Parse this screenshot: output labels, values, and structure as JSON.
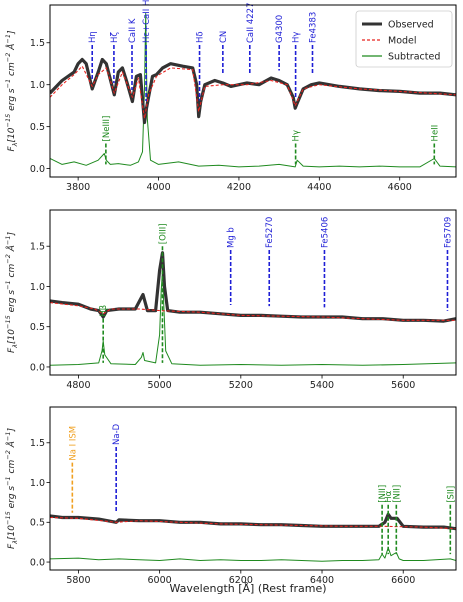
{
  "figure": {
    "xlabel": "Wavelength [Å] (Rest frame)",
    "ylabel_main": "F",
    "ylabel_sub": "λ",
    "ylabel_rest": "[10",
    "ylabel_exp1": "−15",
    "ylabel_units": " erg s",
    "ylabel_exp2": "−1",
    "ylabel_cm": " cm",
    "ylabel_exp3": "−2",
    "ylabel_A": " Å",
    "ylabel_exp4": "−1",
    "ylabel_close": "]"
  },
  "legend": {
    "entries": [
      {
        "label": "Observed",
        "color": "#333333",
        "style": "solid-thick"
      },
      {
        "label": "Model",
        "color": "#e8231f",
        "style": "dashed"
      },
      {
        "label": "Subtracted",
        "color": "#1f8a1f",
        "style": "solid"
      }
    ],
    "placement": "top-right"
  },
  "colors": {
    "observed": "#333333",
    "model": "#e8231f",
    "subtracted": "#1f8a1f",
    "absorption_label": "#1f1fd6",
    "emission_label": "#1f8a1f",
    "ism_label": "#f0a020"
  },
  "chart_data": [
    {
      "type": "line",
      "xlim": [
        3730,
        4740
      ],
      "ylim": [
        -0.1,
        1.95
      ],
      "xticks": [
        3800,
        4000,
        4200,
        4400,
        4600
      ],
      "yticks": [
        0.0,
        0.5,
        1.0,
        1.5
      ],
      "ytick_labels": [
        "0.0",
        "0.5",
        "1.0",
        "1.5"
      ],
      "series": [
        {
          "name": "Observed",
          "x": [
            3730,
            3760,
            3790,
            3800,
            3810,
            3820,
            3835,
            3850,
            3860,
            3870,
            3890,
            3900,
            3910,
            3920,
            3935,
            3945,
            3955,
            3965,
            3970,
            3975,
            3985,
            3995,
            4010,
            4030,
            4060,
            4085,
            4095,
            4100,
            4105,
            4115,
            4140,
            4160,
            4180,
            4200,
            4220,
            4250,
            4280,
            4300,
            4320,
            4335,
            4340,
            4345,
            4360,
            4380,
            4400,
            4450,
            4500,
            4550,
            4600,
            4650,
            4700,
            4740
          ],
          "y": [
            0.9,
            1.05,
            1.15,
            1.25,
            1.3,
            1.25,
            0.95,
            1.15,
            1.3,
            1.25,
            0.88,
            1.15,
            1.2,
            1.05,
            0.8,
            1.1,
            1.12,
            0.55,
            0.72,
            0.85,
            1.1,
            1.12,
            1.2,
            1.25,
            1.22,
            1.2,
            1.0,
            0.62,
            0.8,
            1.0,
            1.05,
            1.02,
            0.98,
            1.0,
            1.02,
            1.0,
            1.08,
            1.05,
            1.0,
            0.85,
            0.72,
            0.78,
            0.95,
            1.0,
            1.02,
            0.98,
            0.95,
            0.93,
            0.92,
            0.9,
            0.9,
            0.88
          ]
        },
        {
          "name": "Model",
          "x": [
            3730,
            3760,
            3790,
            3810,
            3835,
            3850,
            3870,
            3890,
            3910,
            3935,
            3950,
            3965,
            3975,
            3995,
            4030,
            4085,
            4100,
            4115,
            4160,
            4220,
            4280,
            4320,
            4340,
            4360,
            4400,
            4500,
            4600,
            4740
          ],
          "y": [
            0.85,
            1.0,
            1.12,
            1.22,
            0.98,
            1.12,
            1.2,
            0.9,
            1.15,
            0.85,
            1.08,
            0.6,
            0.88,
            1.1,
            1.2,
            1.18,
            0.68,
            0.98,
            1.0,
            1.0,
            1.05,
            1.0,
            0.75,
            0.95,
            1.0,
            0.95,
            0.92,
            0.88
          ]
        },
        {
          "name": "Subtracted",
          "x": [
            3730,
            3760,
            3790,
            3820,
            3850,
            3865,
            3870,
            3880,
            3900,
            3930,
            3950,
            3960,
            3965,
            3968,
            3972,
            3980,
            4000,
            4050,
            4100,
            4150,
            4200,
            4250,
            4300,
            4340,
            4345,
            4360,
            4400,
            4450,
            4500,
            4550,
            4600,
            4650,
            4686,
            4700,
            4740
          ],
          "y": [
            0.12,
            0.05,
            0.08,
            0.04,
            0.1,
            0.18,
            0.1,
            0.05,
            0.06,
            0.04,
            0.08,
            0.2,
            0.95,
            1.85,
            0.6,
            0.1,
            0.05,
            0.08,
            0.03,
            0.04,
            0.02,
            0.03,
            0.05,
            0.02,
            0.1,
            0.03,
            0.02,
            0.03,
            0.02,
            0.03,
            0.02,
            0.02,
            0.12,
            0.03,
            0.02
          ]
        }
      ],
      "annotations": [
        {
          "label": "Hη",
          "x": 3835,
          "kind": "absorption"
        },
        {
          "label": "Hζ",
          "x": 3889,
          "kind": "absorption"
        },
        {
          "label": "CaII K",
          "x": 3934,
          "kind": "absorption"
        },
        {
          "label": "Hε+CaII H",
          "x": 3969,
          "kind": "absorption"
        },
        {
          "label": "Hδ",
          "x": 4102,
          "kind": "absorption"
        },
        {
          "label": "CN",
          "x": 4160,
          "kind": "absorption"
        },
        {
          "label": "CaII 4227",
          "x": 4227,
          "kind": "absorption"
        },
        {
          "label": "G4300",
          "x": 4300,
          "kind": "absorption"
        },
        {
          "label": "Hγ",
          "x": 4341,
          "kind": "absorption"
        },
        {
          "label": "Fe4383",
          "x": 4383,
          "kind": "absorption"
        },
        {
          "label": "[NeIII]",
          "x": 3869,
          "kind": "emission"
        },
        {
          "label": "Hγ",
          "x": 4341,
          "kind": "emission"
        },
        {
          "label": "HeII",
          "x": 4686,
          "kind": "emission"
        }
      ]
    },
    {
      "type": "line",
      "xlim": [
        4730,
        5730
      ],
      "ylim": [
        -0.1,
        1.95
      ],
      "xticks": [
        4800,
        5000,
        5200,
        5400,
        5600
      ],
      "yticks": [
        0.0,
        0.5,
        1.0,
        1.5
      ],
      "ytick_labels": [
        "0.0",
        "0.5",
        "1.0",
        "1.5"
      ],
      "series": [
        {
          "name": "Observed",
          "x": [
            4730,
            4760,
            4800,
            4830,
            4850,
            4861,
            4870,
            4900,
            4940,
            4959,
            4970,
            4990,
            5000,
            5007,
            5012,
            5020,
            5050,
            5100,
            5150,
            5200,
            5250,
            5300,
            5350,
            5400,
            5450,
            5500,
            5550,
            5600,
            5650,
            5700,
            5730
          ],
          "y": [
            0.82,
            0.8,
            0.78,
            0.72,
            0.7,
            0.62,
            0.7,
            0.72,
            0.72,
            0.9,
            0.7,
            0.7,
            1.2,
            1.42,
            1.0,
            0.7,
            0.68,
            0.68,
            0.66,
            0.64,
            0.64,
            0.63,
            0.62,
            0.62,
            0.62,
            0.6,
            0.6,
            0.58,
            0.58,
            0.57,
            0.6
          ]
        },
        {
          "name": "Model",
          "x": [
            4730,
            4800,
            4840,
            4861,
            4880,
            4950,
            5000,
            5100,
            5200,
            5300,
            5400,
            5500,
            5600,
            5730
          ],
          "y": [
            0.8,
            0.76,
            0.72,
            0.66,
            0.72,
            0.72,
            0.7,
            0.68,
            0.64,
            0.63,
            0.62,
            0.6,
            0.58,
            0.58
          ]
        },
        {
          "name": "Subtracted",
          "x": [
            4730,
            4800,
            4850,
            4858,
            4861,
            4865,
            4880,
            4940,
            4955,
            4959,
            4963,
            4990,
            5000,
            5004,
            5007,
            5010,
            5015,
            5030,
            5100,
            5200,
            5300,
            5400,
            5500,
            5600,
            5730
          ],
          "y": [
            0.02,
            0.03,
            0.05,
            0.2,
            0.32,
            0.15,
            0.04,
            0.03,
            0.12,
            0.18,
            0.08,
            0.05,
            0.4,
            0.95,
            1.2,
            0.8,
            0.2,
            0.04,
            0.02,
            0.03,
            0.02,
            0.03,
            0.02,
            0.03,
            0.05
          ]
        }
      ],
      "annotations": [
        {
          "label": "Hβ",
          "x": 4861,
          "kind": "emission"
        },
        {
          "label": "[OIII]",
          "x": 5007,
          "kind": "emission"
        },
        {
          "label": "Mg b",
          "x": 5175,
          "kind": "absorption"
        },
        {
          "label": "Fe5270",
          "x": 5270,
          "kind": "absorption"
        },
        {
          "label": "Fe5406",
          "x": 5406,
          "kind": "absorption"
        },
        {
          "label": "Fe5709",
          "x": 5709,
          "kind": "absorption"
        }
      ]
    },
    {
      "type": "line",
      "xlim": [
        5730,
        6730
      ],
      "ylim": [
        -0.1,
        1.95
      ],
      "xticks": [
        5800,
        6000,
        6200,
        6400,
        6600
      ],
      "yticks": [
        0.0,
        0.5,
        1.0,
        1.5
      ],
      "ytick_labels": [
        "0.0",
        "0.5",
        "1.0",
        "1.5"
      ],
      "series": [
        {
          "name": "Observed",
          "x": [
            5730,
            5760,
            5800,
            5850,
            5893,
            5900,
            5950,
            6000,
            6050,
            6100,
            6150,
            6200,
            6250,
            6300,
            6350,
            6400,
            6450,
            6500,
            6540,
            6555,
            6563,
            6570,
            6585,
            6600,
            6650,
            6700,
            6730
          ],
          "y": [
            0.58,
            0.56,
            0.56,
            0.54,
            0.5,
            0.53,
            0.52,
            0.52,
            0.5,
            0.5,
            0.48,
            0.48,
            0.47,
            0.47,
            0.46,
            0.45,
            0.45,
            0.45,
            0.45,
            0.5,
            0.6,
            0.55,
            0.55,
            0.45,
            0.44,
            0.44,
            0.42
          ]
        },
        {
          "name": "Model",
          "x": [
            5730,
            5800,
            5893,
            5950,
            6050,
            6150,
            6250,
            6350,
            6450,
            6550,
            6650,
            6730
          ],
          "y": [
            0.56,
            0.55,
            0.5,
            0.52,
            0.5,
            0.48,
            0.47,
            0.46,
            0.45,
            0.45,
            0.44,
            0.42
          ]
        },
        {
          "name": "Subtracted",
          "x": [
            5730,
            5800,
            5850,
            5900,
            5950,
            6000,
            6050,
            6100,
            6150,
            6200,
            6250,
            6300,
            6350,
            6400,
            6450,
            6500,
            6540,
            6548,
            6555,
            6563,
            6570,
            6583,
            6590,
            6600,
            6650,
            6716,
            6730
          ],
          "y": [
            0.04,
            0.05,
            0.03,
            0.04,
            0.03,
            0.02,
            0.04,
            0.02,
            0.03,
            0.02,
            0.02,
            0.03,
            0.02,
            0.01,
            0.02,
            0.02,
            0.03,
            0.1,
            0.05,
            0.18,
            0.08,
            0.12,
            0.04,
            0.02,
            0.02,
            0.04,
            0.02
          ]
        }
      ],
      "annotations": [
        {
          "label": "Na I ISM",
          "x": 5785,
          "kind": "ism"
        },
        {
          "label": "Na-D",
          "x": 5893,
          "kind": "absorption"
        },
        {
          "label": "[NII]",
          "x": 6548,
          "kind": "emission"
        },
        {
          "label": "Hα",
          "x": 6563,
          "kind": "emission"
        },
        {
          "label": "[NII]",
          "x": 6583,
          "kind": "emission"
        },
        {
          "label": "[SII]",
          "x": 6716,
          "kind": "emission"
        }
      ]
    }
  ]
}
